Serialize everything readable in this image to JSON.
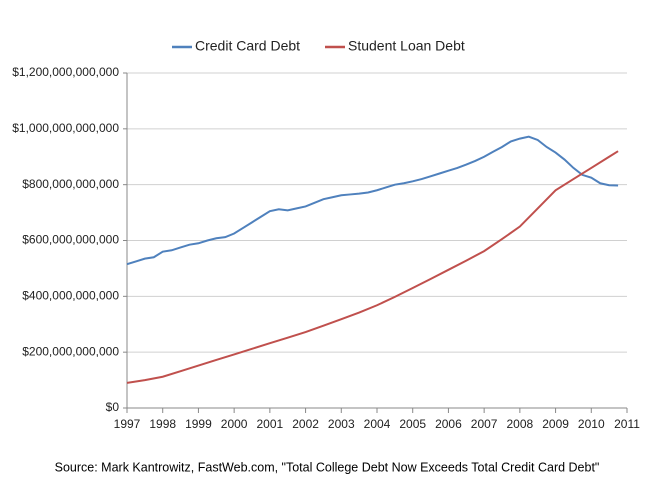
{
  "chart_data": {
    "type": "line",
    "source": "Source: Mark Kantrowitz, FastWeb.com, \"Total College Debt Now Exceeds Total Credit Card Debt\"",
    "xlim": [
      1997,
      2011
    ],
    "xticks": [
      1997,
      1998,
      1999,
      2000,
      2001,
      2002,
      2003,
      2004,
      2005,
      2006,
      2007,
      2008,
      2009,
      2010,
      2011
    ],
    "ylim": [
      0,
      1200000000000
    ],
    "yticks": [
      {
        "value": 0,
        "label": "$0"
      },
      {
        "value": 200000000000,
        "label": "$200,000,000,000"
      },
      {
        "value": 400000000000,
        "label": "$400,000,000,000"
      },
      {
        "value": 600000000000,
        "label": "$600,000,000,000"
      },
      {
        "value": 800000000000,
        "label": "$800,000,000,000"
      },
      {
        "value": 1000000000000,
        "label": "$1,000,000,000,000"
      },
      {
        "value": 1200000000000,
        "label": "$1,200,000,000,000"
      }
    ],
    "grid": true,
    "legend": "top",
    "series": [
      {
        "name": "Credit Card Debt",
        "color": "#4f81bd",
        "x": [
          1997,
          1997.25,
          1997.5,
          1997.75,
          1998,
          1998.25,
          1998.5,
          1998.75,
          1999,
          1999.25,
          1999.5,
          1999.75,
          2000,
          2000.25,
          2000.5,
          2000.75,
          2001,
          2001.25,
          2001.5,
          2001.75,
          2002,
          2002.25,
          2002.5,
          2002.75,
          2003,
          2003.25,
          2003.5,
          2003.75,
          2004,
          2004.25,
          2004.5,
          2004.75,
          2005,
          2005.25,
          2005.5,
          2005.75,
          2006,
          2006.25,
          2006.5,
          2006.75,
          2007,
          2007.25,
          2007.5,
          2007.75,
          2008,
          2008.25,
          2008.5,
          2008.75,
          2009,
          2009.25,
          2009.5,
          2009.75,
          2010,
          2010.25,
          2010.5,
          2010.75
        ],
        "values": [
          515000000000,
          525000000000,
          535000000000,
          540000000000,
          560000000000,
          565000000000,
          575000000000,
          585000000000,
          590000000000,
          600000000000,
          608000000000,
          612000000000,
          625000000000,
          645000000000,
          665000000000,
          685000000000,
          705000000000,
          712000000000,
          708000000000,
          715000000000,
          722000000000,
          735000000000,
          748000000000,
          755000000000,
          762000000000,
          765000000000,
          768000000000,
          772000000000,
          780000000000,
          790000000000,
          800000000000,
          805000000000,
          812000000000,
          820000000000,
          830000000000,
          840000000000,
          850000000000,
          860000000000,
          872000000000,
          885000000000,
          900000000000,
          918000000000,
          935000000000,
          955000000000,
          965000000000,
          972000000000,
          960000000000,
          935000000000,
          915000000000,
          890000000000,
          860000000000,
          835000000000,
          825000000000,
          805000000000,
          798000000000,
          797000000000
        ]
      },
      {
        "name": "Student Loan Debt",
        "color": "#c0504d",
        "x": [
          1997,
          1997.5,
          1998,
          1998.5,
          1999,
          1999.5,
          2000,
          2000.5,
          2001,
          2001.5,
          2002,
          2002.5,
          2003,
          2003.5,
          2004,
          2004.5,
          2005,
          2005.5,
          2006,
          2006.5,
          2007,
          2007.5,
          2008,
          2008.5,
          2009,
          2009.5,
          2010,
          2010.5,
          2010.75
        ],
        "values": [
          90000000000,
          100000000000,
          112000000000,
          132000000000,
          152000000000,
          172000000000,
          192000000000,
          212000000000,
          232000000000,
          252000000000,
          272000000000,
          295000000000,
          318000000000,
          342000000000,
          368000000000,
          398000000000,
          430000000000,
          462000000000,
          495000000000,
          528000000000,
          562000000000,
          605000000000,
          650000000000,
          715000000000,
          780000000000,
          820000000000,
          860000000000,
          900000000000,
          920000000000
        ]
      }
    ]
  }
}
